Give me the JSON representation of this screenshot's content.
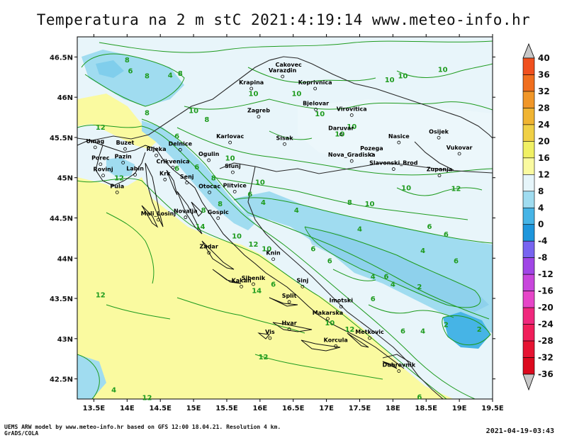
{
  "title": "Temperatura na 2 m stC 2021:4:19:14 www.meteo-info.hr",
  "footer": {
    "model_line": "UEMS ARW model by www.meteo-info.hr based on GFS 12:00 18.04.21. Resolution 4 km.",
    "software": "GrADS/COLA",
    "issued": "2021-04-19-03:43"
  },
  "axes": {
    "x_ticks": [
      "13.5E",
      "14E",
      "14.5E",
      "15E",
      "15.5E",
      "16E",
      "16.5E",
      "17E",
      "17.5E",
      "18E",
      "18.5E",
      "19E",
      "19.5E"
    ],
    "y_ticks": [
      "46.5N",
      "46N",
      "45.5N",
      "45N",
      "44.5N",
      "44N",
      "43.5N",
      "43N",
      "42.5N"
    ],
    "lon_range": [
      13.5,
      19.5
    ],
    "lat_range": [
      42.5,
      46.5
    ]
  },
  "colorbar": {
    "labels": [
      "40",
      "36",
      "32",
      "28",
      "24",
      "20",
      "16",
      "12",
      "8",
      "4",
      "0",
      "-4",
      "-8",
      "-12",
      "-16",
      "-20",
      "-24",
      "-28",
      "-32",
      "-36"
    ],
    "colors": [
      "#c8c8c8",
      "#f0501e",
      "#f06e1e",
      "#f09628",
      "#f0b432",
      "#f0d046",
      "#f0f064",
      "#fafaa0",
      "#e6f5fa",
      "#a0dcf0",
      "#46b4e6",
      "#1e96dc",
      "#7864f0",
      "#a046e6",
      "#c846dc",
      "#e646c8",
      "#f0287d",
      "#f01e5a",
      "#e61432",
      "#dc0a1e",
      "#c8c8c8"
    ]
  },
  "cities": [
    {
      "name": "Cakovec",
      "lon": 16.43,
      "lat": 46.38
    },
    {
      "name": "Varazdin",
      "lon": 16.34,
      "lat": 46.31
    },
    {
      "name": "Koprivnica",
      "lon": 16.83,
      "lat": 46.16
    },
    {
      "name": "Krapina",
      "lon": 15.87,
      "lat": 46.16
    },
    {
      "name": "Bjelovar",
      "lon": 16.84,
      "lat": 45.9
    },
    {
      "name": "Zagreb",
      "lon": 15.98,
      "lat": 45.81
    },
    {
      "name": "Virovitica",
      "lon": 17.38,
      "lat": 45.83
    },
    {
      "name": "Osijek",
      "lon": 18.69,
      "lat": 45.55
    },
    {
      "name": "Karlovac",
      "lon": 15.55,
      "lat": 45.49
    },
    {
      "name": "Sisak",
      "lon": 16.37,
      "lat": 45.47
    },
    {
      "name": "Daruvar",
      "lon": 17.22,
      "lat": 45.59
    },
    {
      "name": "Pozega",
      "lon": 17.68,
      "lat": 45.34
    },
    {
      "name": "Nasice",
      "lon": 18.09,
      "lat": 45.49
    },
    {
      "name": "Vukovar",
      "lon": 19.0,
      "lat": 45.35
    },
    {
      "name": "Umag",
      "lon": 13.52,
      "lat": 45.43
    },
    {
      "name": "Buzet",
      "lon": 13.97,
      "lat": 45.41
    },
    {
      "name": "Delnice",
      "lon": 14.8,
      "lat": 45.4
    },
    {
      "name": "Rijeka",
      "lon": 14.44,
      "lat": 45.33
    },
    {
      "name": "Porec",
      "lon": 13.6,
      "lat": 45.22
    },
    {
      "name": "Pazin",
      "lon": 13.94,
      "lat": 45.24
    },
    {
      "name": "Ogulin",
      "lon": 15.23,
      "lat": 45.27
    },
    {
      "name": "Crikvenica",
      "lon": 14.69,
      "lat": 45.18
    },
    {
      "name": "Labin",
      "lon": 14.12,
      "lat": 45.09
    },
    {
      "name": "Rovinj",
      "lon": 13.64,
      "lat": 45.08
    },
    {
      "name": "Slunj",
      "lon": 15.59,
      "lat": 45.12
    },
    {
      "name": "Nova_Gradiska",
      "lon": 17.38,
      "lat": 45.26
    },
    {
      "name": "Slavonski_Brod",
      "lon": 18.01,
      "lat": 45.16
    },
    {
      "name": "Zupanja",
      "lon": 18.7,
      "lat": 45.08
    },
    {
      "name": "Krk",
      "lon": 14.57,
      "lat": 45.03
    },
    {
      "name": "Senj",
      "lon": 14.9,
      "lat": 44.99
    },
    {
      "name": "Pula",
      "lon": 13.85,
      "lat": 44.87
    },
    {
      "name": "Otocac",
      "lon": 15.24,
      "lat": 44.87
    },
    {
      "name": "Plitvice",
      "lon": 15.62,
      "lat": 44.88
    },
    {
      "name": "Mali_Losinj",
      "lon": 14.47,
      "lat": 44.53
    },
    {
      "name": "Novalja",
      "lon": 14.88,
      "lat": 44.56
    },
    {
      "name": "Gospic",
      "lon": 15.37,
      "lat": 44.55
    },
    {
      "name": "Zadar",
      "lon": 15.23,
      "lat": 44.12
    },
    {
      "name": "Knin",
      "lon": 16.2,
      "lat": 44.04
    },
    {
      "name": "Sibenik",
      "lon": 15.9,
      "lat": 43.73
    },
    {
      "name": "Kakan",
      "lon": 15.72,
      "lat": 43.7
    },
    {
      "name": "Sinj",
      "lon": 16.64,
      "lat": 43.7
    },
    {
      "name": "Imotski",
      "lon": 17.22,
      "lat": 43.45
    },
    {
      "name": "Split",
      "lon": 16.44,
      "lat": 43.51
    },
    {
      "name": "Makarska",
      "lon": 17.02,
      "lat": 43.3
    },
    {
      "name": "Metkovic",
      "lon": 17.65,
      "lat": 43.06
    },
    {
      "name": "Hvar",
      "lon": 16.44,
      "lat": 43.17
    },
    {
      "name": "Vis",
      "lon": 16.15,
      "lat": 43.06
    },
    {
      "name": "Korcula",
      "lon": 17.14,
      "lat": 42.96
    },
    {
      "name": "Dubrovnik",
      "lon": 18.09,
      "lat": 42.65
    }
  ],
  "contour_labels": [
    {
      "t": "8",
      "lon": 14.0,
      "lat": 46.47
    },
    {
      "t": "6",
      "lon": 14.05,
      "lat": 46.33
    },
    {
      "t": "8",
      "lon": 14.3,
      "lat": 46.27
    },
    {
      "t": "4",
      "lon": 14.65,
      "lat": 46.28
    },
    {
      "t": "8",
      "lon": 14.8,
      "lat": 46.3
    },
    {
      "t": "8",
      "lon": 14.3,
      "lat": 45.81
    },
    {
      "t": "10",
      "lon": 15.0,
      "lat": 45.84
    },
    {
      "t": "12",
      "lon": 13.6,
      "lat": 45.63
    },
    {
      "t": "6",
      "lon": 14.75,
      "lat": 45.52
    },
    {
      "t": "8",
      "lon": 15.2,
      "lat": 45.73
    },
    {
      "t": "10",
      "lon": 15.9,
      "lat": 46.05
    },
    {
      "t": "10",
      "lon": 16.55,
      "lat": 46.05
    },
    {
      "t": "10",
      "lon": 16.9,
      "lat": 45.8
    },
    {
      "t": "10",
      "lon": 17.2,
      "lat": 45.55
    },
    {
      "t": "10",
      "lon": 17.38,
      "lat": 45.64
    },
    {
      "t": "10",
      "lon": 17.95,
      "lat": 46.22
    },
    {
      "t": "10",
      "lon": 18.15,
      "lat": 46.27
    },
    {
      "t": "10",
      "lon": 18.75,
      "lat": 46.35
    },
    {
      "t": "10",
      "lon": 15.55,
      "lat": 45.25
    },
    {
      "t": "6",
      "lon": 14.75,
      "lat": 45.12
    },
    {
      "t": "6",
      "lon": 15.05,
      "lat": 45.14
    },
    {
      "t": "8",
      "lon": 15.3,
      "lat": 45.0
    },
    {
      "t": "10",
      "lon": 16.0,
      "lat": 44.95
    },
    {
      "t": "12",
      "lon": 13.88,
      "lat": 45.0
    },
    {
      "t": "10",
      "lon": 17.65,
      "lat": 44.68
    },
    {
      "t": "8",
      "lon": 17.35,
      "lat": 44.7
    },
    {
      "t": "10",
      "lon": 18.2,
      "lat": 44.88
    },
    {
      "t": "12",
      "lon": 18.95,
      "lat": 44.87
    },
    {
      "t": "6",
      "lon": 15.85,
      "lat": 44.8
    },
    {
      "t": "4",
      "lon": 16.05,
      "lat": 44.7
    },
    {
      "t": "4",
      "lon": 16.55,
      "lat": 44.6
    },
    {
      "t": "8",
      "lon": 15.15,
      "lat": 44.6
    },
    {
      "t": "8",
      "lon": 15.4,
      "lat": 44.68
    },
    {
      "t": "14",
      "lon": 15.1,
      "lat": 44.4
    },
    {
      "t": "10",
      "lon": 15.65,
      "lat": 44.28
    },
    {
      "t": "12",
      "lon": 15.9,
      "lat": 44.18
    },
    {
      "t": "10",
      "lon": 16.1,
      "lat": 44.12
    },
    {
      "t": "4",
      "lon": 17.5,
      "lat": 44.37
    },
    {
      "t": "6",
      "lon": 18.55,
      "lat": 44.4
    },
    {
      "t": "6",
      "lon": 18.8,
      "lat": 44.3
    },
    {
      "t": "4",
      "lon": 18.45,
      "lat": 44.1
    },
    {
      "t": "6",
      "lon": 16.8,
      "lat": 44.12
    },
    {
      "t": "6",
      "lon": 17.05,
      "lat": 43.97
    },
    {
      "t": "4",
      "lon": 17.7,
      "lat": 43.78
    },
    {
      "t": "6",
      "lon": 17.9,
      "lat": 43.78
    },
    {
      "t": "4",
      "lon": 18.0,
      "lat": 43.68
    },
    {
      "t": "6",
      "lon": 18.95,
      "lat": 43.97
    },
    {
      "t": "2",
      "lon": 18.4,
      "lat": 43.65
    },
    {
      "t": "14",
      "lon": 15.95,
      "lat": 43.6
    },
    {
      "t": "6",
      "lon": 16.2,
      "lat": 43.68
    },
    {
      "t": "6",
      "lon": 17.7,
      "lat": 43.5
    },
    {
      "t": "12",
      "lon": 17.35,
      "lat": 43.12
    },
    {
      "t": "10",
      "lon": 17.05,
      "lat": 43.2
    },
    {
      "t": "6",
      "lon": 18.15,
      "lat": 43.1
    },
    {
      "t": "4",
      "lon": 18.45,
      "lat": 43.1
    },
    {
      "t": "2",
      "lon": 18.8,
      "lat": 43.18
    },
    {
      "t": "2",
      "lon": 19.3,
      "lat": 43.12
    },
    {
      "t": "12",
      "lon": 13.6,
      "lat": 43.55
    },
    {
      "t": "12",
      "lon": 16.05,
      "lat": 42.78
    },
    {
      "t": "4",
      "lon": 13.8,
      "lat": 42.37
    },
    {
      "t": "12",
      "lon": 14.3,
      "lat": 42.27
    },
    {
      "t": "6",
      "lon": 18.4,
      "lat": 42.28
    }
  ]
}
